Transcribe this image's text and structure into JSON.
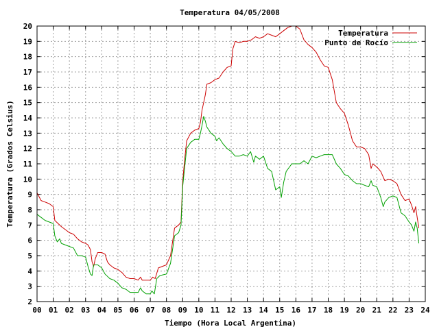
{
  "chart_data": {
    "type": "line",
    "title": "Temperatura 04/05/2008",
    "xlabel": "Tiempo (Hora Local Argentina)",
    "ylabel": "Temperatura (Grados Celsius)",
    "xlim": [
      0,
      24
    ],
    "ylim": [
      2,
      20
    ],
    "x_ticks": [
      "00",
      "01",
      "02",
      "03",
      "04",
      "05",
      "06",
      "07",
      "08",
      "09",
      "10",
      "11",
      "12",
      "13",
      "14",
      "15",
      "16",
      "17",
      "18",
      "19",
      "20",
      "21",
      "22",
      "23",
      "24"
    ],
    "y_ticks": [
      2,
      3,
      4,
      5,
      6,
      7,
      8,
      9,
      10,
      11,
      12,
      13,
      14,
      15,
      16,
      17,
      18,
      19,
      20
    ],
    "grid": true,
    "legend_position": "top-right",
    "series": [
      {
        "name": "Temperatura",
        "color": "#cc0000",
        "points": [
          [
            0,
            9.1
          ],
          [
            0.25,
            8.6
          ],
          [
            0.5,
            8.5
          ],
          [
            0.75,
            8.4
          ],
          [
            1,
            8.2
          ],
          [
            1.1,
            7.3
          ],
          [
            1.3,
            7.1
          ],
          [
            1.5,
            6.9
          ],
          [
            1.75,
            6.7
          ],
          [
            2,
            6.5
          ],
          [
            2.25,
            6.4
          ],
          [
            2.5,
            6.1
          ],
          [
            2.75,
            5.9
          ],
          [
            3,
            5.8
          ],
          [
            3.15,
            5.7
          ],
          [
            3.3,
            5.4
          ],
          [
            3.4,
            4.6
          ],
          [
            3.5,
            4.3
          ],
          [
            3.6,
            4.8
          ],
          [
            3.75,
            5.2
          ],
          [
            4,
            5.2
          ],
          [
            4.2,
            5.1
          ],
          [
            4.35,
            4.6
          ],
          [
            4.5,
            4.4
          ],
          [
            4.75,
            4.2
          ],
          [
            5,
            4.1
          ],
          [
            5.25,
            3.9
          ],
          [
            5.5,
            3.6
          ],
          [
            5.75,
            3.5
          ],
          [
            6,
            3.5
          ],
          [
            6.25,
            3.4
          ],
          [
            6.4,
            3.6
          ],
          [
            6.5,
            3.4
          ],
          [
            6.75,
            3.4
          ],
          [
            7,
            3.4
          ],
          [
            7.15,
            3.6
          ],
          [
            7.3,
            3.5
          ],
          [
            7.5,
            4.2
          ],
          [
            7.75,
            4.3
          ],
          [
            8,
            4.4
          ],
          [
            8.25,
            5.0
          ],
          [
            8.5,
            6.8
          ],
          [
            8.75,
            7.0
          ],
          [
            8.9,
            7.2
          ],
          [
            9.0,
            9.8
          ],
          [
            9.1,
            11.0
          ],
          [
            9.25,
            12.5
          ],
          [
            9.5,
            13.0
          ],
          [
            9.75,
            13.2
          ],
          [
            10,
            13.3
          ],
          [
            10.1,
            13.7
          ],
          [
            10.2,
            14.5
          ],
          [
            10.3,
            15.0
          ],
          [
            10.4,
            15.5
          ],
          [
            10.5,
            16.2
          ],
          [
            10.75,
            16.3
          ],
          [
            11,
            16.5
          ],
          [
            11.25,
            16.6
          ],
          [
            11.5,
            17.0
          ],
          [
            11.75,
            17.3
          ],
          [
            12,
            17.4
          ],
          [
            12.1,
            18.5
          ],
          [
            12.25,
            19.0
          ],
          [
            12.5,
            18.9
          ],
          [
            12.75,
            19.0
          ],
          [
            13,
            19.0
          ],
          [
            13.25,
            19.1
          ],
          [
            13.5,
            19.3
          ],
          [
            13.75,
            19.2
          ],
          [
            14,
            19.3
          ],
          [
            14.25,
            19.5
          ],
          [
            14.5,
            19.4
          ],
          [
            14.75,
            19.3
          ],
          [
            15,
            19.5
          ],
          [
            15.25,
            19.7
          ],
          [
            15.5,
            19.9
          ],
          [
            15.75,
            20.0
          ],
          [
            16,
            20.0
          ],
          [
            16.25,
            19.8
          ],
          [
            16.5,
            19.1
          ],
          [
            16.75,
            18.8
          ],
          [
            17,
            18.6
          ],
          [
            17.25,
            18.3
          ],
          [
            17.5,
            17.8
          ],
          [
            17.75,
            17.4
          ],
          [
            18,
            17.3
          ],
          [
            18.25,
            16.5
          ],
          [
            18.5,
            15.0
          ],
          [
            18.75,
            14.6
          ],
          [
            19,
            14.3
          ],
          [
            19.25,
            13.5
          ],
          [
            19.5,
            12.5
          ],
          [
            19.75,
            12.1
          ],
          [
            20,
            12.1
          ],
          [
            20.25,
            12.0
          ],
          [
            20.5,
            11.6
          ],
          [
            20.65,
            10.7
          ],
          [
            20.75,
            11.0
          ],
          [
            21,
            10.8
          ],
          [
            21.25,
            10.5
          ],
          [
            21.5,
            9.9
          ],
          [
            21.75,
            10.0
          ],
          [
            22,
            9.9
          ],
          [
            22.25,
            9.7
          ],
          [
            22.5,
            9.0
          ],
          [
            22.75,
            8.6
          ],
          [
            23,
            8.7
          ],
          [
            23.15,
            8.3
          ],
          [
            23.3,
            7.8
          ],
          [
            23.4,
            8.2
          ],
          [
            23.5,
            7.5
          ],
          [
            23.6,
            6.8
          ]
        ]
      },
      {
        "name": "Punto de Rocío",
        "color": "#00a000",
        "points": [
          [
            0,
            7.7
          ],
          [
            0.25,
            7.5
          ],
          [
            0.5,
            7.3
          ],
          [
            0.75,
            7.2
          ],
          [
            1,
            7.1
          ],
          [
            1.1,
            6.3
          ],
          [
            1.25,
            5.9
          ],
          [
            1.4,
            6.1
          ],
          [
            1.5,
            5.8
          ],
          [
            1.75,
            5.7
          ],
          [
            2,
            5.6
          ],
          [
            2.25,
            5.5
          ],
          [
            2.5,
            5.0
          ],
          [
            2.75,
            5.0
          ],
          [
            3,
            4.9
          ],
          [
            3.15,
            4.3
          ],
          [
            3.3,
            3.8
          ],
          [
            3.4,
            3.7
          ],
          [
            3.5,
            4.4
          ],
          [
            3.75,
            4.4
          ],
          [
            4,
            4.2
          ],
          [
            4.2,
            3.8
          ],
          [
            4.4,
            3.6
          ],
          [
            4.5,
            3.5
          ],
          [
            4.75,
            3.4
          ],
          [
            5,
            3.2
          ],
          [
            5.25,
            2.9
          ],
          [
            5.5,
            2.8
          ],
          [
            5.75,
            2.6
          ],
          [
            6,
            2.6
          ],
          [
            6.25,
            2.6
          ],
          [
            6.4,
            2.9
          ],
          [
            6.5,
            2.7
          ],
          [
            6.75,
            2.5
          ],
          [
            7,
            2.5
          ],
          [
            7.1,
            2.7
          ],
          [
            7.25,
            2.5
          ],
          [
            7.4,
            3.5
          ],
          [
            7.6,
            3.7
          ],
          [
            8,
            3.8
          ],
          [
            8.25,
            4.5
          ],
          [
            8.5,
            6.3
          ],
          [
            8.75,
            6.5
          ],
          [
            8.9,
            7.0
          ],
          [
            9.0,
            9.5
          ],
          [
            9.1,
            10.5
          ],
          [
            9.25,
            12.0
          ],
          [
            9.5,
            12.4
          ],
          [
            9.75,
            12.6
          ],
          [
            10,
            12.6
          ],
          [
            10.1,
            13.0
          ],
          [
            10.2,
            13.5
          ],
          [
            10.3,
            14.1
          ],
          [
            10.4,
            13.8
          ],
          [
            10.5,
            13.4
          ],
          [
            10.75,
            13.0
          ],
          [
            11,
            12.8
          ],
          [
            11.1,
            12.5
          ],
          [
            11.25,
            12.7
          ],
          [
            11.5,
            12.3
          ],
          [
            11.75,
            12.0
          ],
          [
            12,
            11.8
          ],
          [
            12.25,
            11.5
          ],
          [
            12.5,
            11.5
          ],
          [
            12.75,
            11.6
          ],
          [
            13,
            11.5
          ],
          [
            13.2,
            11.8
          ],
          [
            13.4,
            11.1
          ],
          [
            13.5,
            11.5
          ],
          [
            13.75,
            11.3
          ],
          [
            14,
            11.5
          ],
          [
            14.25,
            10.7
          ],
          [
            14.5,
            10.5
          ],
          [
            14.75,
            9.3
          ],
          [
            15,
            9.5
          ],
          [
            15.1,
            8.8
          ],
          [
            15.25,
            9.8
          ],
          [
            15.4,
            10.5
          ],
          [
            15.75,
            11.0
          ],
          [
            16,
            11.0
          ],
          [
            16.25,
            11.0
          ],
          [
            16.5,
            11.2
          ],
          [
            16.75,
            11.0
          ],
          [
            17,
            11.5
          ],
          [
            17.25,
            11.4
          ],
          [
            17.5,
            11.5
          ],
          [
            17.75,
            11.6
          ],
          [
            18,
            11.6
          ],
          [
            18.25,
            11.6
          ],
          [
            18.5,
            11.0
          ],
          [
            18.75,
            10.7
          ],
          [
            19,
            10.3
          ],
          [
            19.25,
            10.2
          ],
          [
            19.5,
            9.9
          ],
          [
            19.75,
            9.7
          ],
          [
            20,
            9.7
          ],
          [
            20.25,
            9.6
          ],
          [
            20.5,
            9.5
          ],
          [
            20.65,
            9.9
          ],
          [
            20.75,
            9.6
          ],
          [
            21,
            9.5
          ],
          [
            21.25,
            8.8
          ],
          [
            21.4,
            8.2
          ],
          [
            21.5,
            8.5
          ],
          [
            21.75,
            8.8
          ],
          [
            22,
            8.9
          ],
          [
            22.25,
            8.8
          ],
          [
            22.5,
            7.8
          ],
          [
            22.75,
            7.6
          ],
          [
            23,
            7.2
          ],
          [
            23.15,
            7.0
          ],
          [
            23.3,
            6.6
          ],
          [
            23.4,
            7.2
          ],
          [
            23.5,
            6.8
          ],
          [
            23.6,
            5.8
          ]
        ]
      }
    ]
  }
}
